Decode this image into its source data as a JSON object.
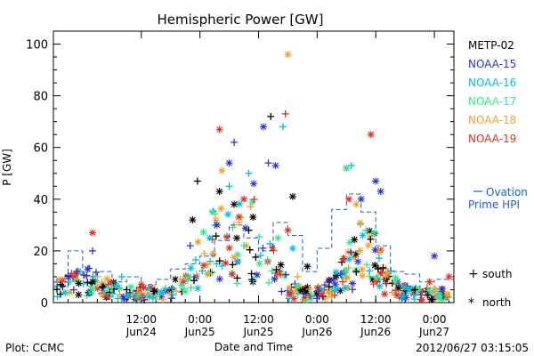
{
  "chart_data": {
    "type": "scatter",
    "title": "Hemispheric Power [GW]",
    "xlabel": "Date and Time",
    "ylabel": "P [GW]",
    "ylim": [
      0,
      105
    ],
    "yticks": [
      0,
      20,
      40,
      60,
      80,
      100
    ],
    "xlim": [
      "2012-06-23 18:00",
      "2012-06-27 04:00"
    ],
    "xticks": [
      {
        "time": "2012-06-24 12:00",
        "line1": "12:00",
        "line2": "Jun24"
      },
      {
        "time": "2012-06-25 00:00",
        "line1": "0:00",
        "line2": "Jun25"
      },
      {
        "time": "2012-06-25 12:00",
        "line1": "12:00",
        "line2": "Jun25"
      },
      {
        "time": "2012-06-26 00:00",
        "line1": "0:00",
        "line2": "Jun26"
      },
      {
        "time": "2012-06-26 12:00",
        "line1": "12:00",
        "line2": "Jun26"
      },
      {
        "time": "2012-06-27 00:00",
        "line1": "0:00",
        "line2": "Jun27"
      }
    ],
    "grid": false,
    "legend_position": "right",
    "series": [
      {
        "name": "METP-02",
        "color": "#000000",
        "points": [
          {
            "x": "2012-06-23 19:30",
            "y": 7,
            "m": "+"
          },
          {
            "x": "2012-06-24 02:00",
            "y": 8,
            "m": "*"
          },
          {
            "x": "2012-06-24 09:00",
            "y": 5,
            "m": "+"
          },
          {
            "x": "2012-06-24 19:00",
            "y": 9,
            "m": "*"
          },
          {
            "x": "2012-06-24 22:30",
            "y": 32,
            "m": "*"
          },
          {
            "x": "2012-06-24 23:30",
            "y": 47,
            "m": "+"
          },
          {
            "x": "2012-06-25 04:00",
            "y": 43,
            "m": "*"
          },
          {
            "x": "2012-06-25 07:00",
            "y": 38,
            "m": "*"
          },
          {
            "x": "2012-06-25 10:00",
            "y": 28,
            "m": "+"
          },
          {
            "x": "2012-06-25 14:30",
            "y": 72,
            "m": "+"
          },
          {
            "x": "2012-06-25 19:00",
            "y": 41,
            "m": "*"
          },
          {
            "x": "2012-06-25 22:00",
            "y": 14,
            "m": "*"
          },
          {
            "x": "2012-06-26 08:00",
            "y": 12,
            "m": "+"
          },
          {
            "x": "2012-06-26 14:00",
            "y": 9,
            "m": "*"
          },
          {
            "x": "2012-06-26 20:00",
            "y": 5,
            "m": "+"
          }
        ]
      },
      {
        "name": "NOAA-15",
        "color": "#2a34d0",
        "points": [
          {
            "x": "2012-06-23 21:00",
            "y": 10,
            "m": "*"
          },
          {
            "x": "2012-06-24 01:00",
            "y": 13,
            "m": "*"
          },
          {
            "x": "2012-06-24 02:00",
            "y": 20,
            "m": "+"
          },
          {
            "x": "2012-06-24 22:00",
            "y": 22,
            "m": "+"
          },
          {
            "x": "2012-06-25 03:30",
            "y": 30,
            "m": "*"
          },
          {
            "x": "2012-06-25 06:00",
            "y": 54,
            "m": "*"
          },
          {
            "x": "2012-06-25 07:00",
            "y": 62,
            "m": "+"
          },
          {
            "x": "2012-06-25 11:00",
            "y": 46,
            "m": "*"
          },
          {
            "x": "2012-06-25 13:00",
            "y": 68,
            "m": "*"
          },
          {
            "x": "2012-06-25 14:00",
            "y": 54,
            "m": "+"
          },
          {
            "x": "2012-06-25 15:30",
            "y": 53,
            "m": "*"
          },
          {
            "x": "2012-06-26 06:00",
            "y": 52,
            "m": "*"
          },
          {
            "x": "2012-06-26 09:00",
            "y": 40,
            "m": "*"
          },
          {
            "x": "2012-06-26 12:00",
            "y": 47,
            "m": "*"
          },
          {
            "x": "2012-06-26 13:00",
            "y": 43,
            "m": "*"
          },
          {
            "x": "2012-06-27 00:00",
            "y": 18,
            "m": "*"
          }
        ]
      },
      {
        "name": "NOAA-16",
        "color": "#00bfe0",
        "points": [
          {
            "x": "2012-06-24 08:00",
            "y": 10,
            "m": "+"
          },
          {
            "x": "2012-06-25 02:00",
            "y": 25,
            "m": "*"
          },
          {
            "x": "2012-06-25 06:00",
            "y": 45,
            "m": "+"
          },
          {
            "x": "2012-06-25 10:00",
            "y": 50,
            "m": "+"
          },
          {
            "x": "2012-06-25 17:00",
            "y": 68,
            "m": "+"
          },
          {
            "x": "2012-06-25 19:00",
            "y": 21,
            "m": "*"
          },
          {
            "x": "2012-06-26 07:00",
            "y": 53,
            "m": "+"
          },
          {
            "x": "2012-06-26 18:00",
            "y": 6,
            "m": "*"
          }
        ]
      },
      {
        "name": "NOAA-17",
        "color": "#30e890",
        "points": [
          {
            "x": "2012-06-24 06:00",
            "y": 6,
            "m": "+"
          },
          {
            "x": "2012-06-25 02:30",
            "y": 35,
            "m": "*"
          },
          {
            "x": "2012-06-25 09:00",
            "y": 22,
            "m": "+"
          },
          {
            "x": "2012-06-25 16:00",
            "y": 25,
            "m": "*"
          },
          {
            "x": "2012-06-26 06:00",
            "y": 52,
            "m": "*"
          },
          {
            "x": "2012-06-26 10:00",
            "y": 28,
            "m": "+"
          },
          {
            "x": "2012-06-26 16:00",
            "y": 8,
            "m": "*"
          }
        ]
      },
      {
        "name": "NOAA-18",
        "color": "#f0a030",
        "points": [
          {
            "x": "2012-06-24 04:00",
            "y": 3,
            "m": "*"
          },
          {
            "x": "2012-06-24 20:00",
            "y": 9,
            "m": "+"
          },
          {
            "x": "2012-06-25 04:30",
            "y": 51,
            "m": "*"
          },
          {
            "x": "2012-06-25 08:00",
            "y": 31,
            "m": "+"
          },
          {
            "x": "2012-06-25 18:00",
            "y": 96,
            "m": "*"
          },
          {
            "x": "2012-06-25 20:00",
            "y": 10,
            "m": "+"
          },
          {
            "x": "2012-06-26 08:00",
            "y": 38,
            "m": "*"
          },
          {
            "x": "2012-06-26 14:00",
            "y": 10,
            "m": "+"
          },
          {
            "x": "2012-06-27 02:30",
            "y": 3,
            "m": "*"
          }
        ]
      },
      {
        "name": "NOAA-19",
        "color": "#e03020",
        "points": [
          {
            "x": "2012-06-24 02:00",
            "y": 27,
            "m": "*"
          },
          {
            "x": "2012-06-24 12:00",
            "y": 7,
            "m": "*"
          },
          {
            "x": "2012-06-25 04:00",
            "y": 67,
            "m": "*"
          },
          {
            "x": "2012-06-25 09:00",
            "y": 40,
            "m": "*"
          },
          {
            "x": "2012-06-25 17:30",
            "y": 73,
            "m": "+"
          },
          {
            "x": "2012-06-25 18:00",
            "y": 28,
            "m": "*"
          },
          {
            "x": "2012-06-26 06:30",
            "y": 40,
            "m": "*"
          },
          {
            "x": "2012-06-26 11:00",
            "y": 65,
            "m": "*"
          },
          {
            "x": "2012-06-26 23:00",
            "y": 8,
            "m": "*"
          },
          {
            "x": "2012-06-27 03:00",
            "y": 10,
            "m": "*"
          }
        ]
      },
      {
        "name": "Ovation Prime HPI",
        "color": "#2060c8",
        "style": "dash-step",
        "points": [
          {
            "x": "2012-06-23 18:00",
            "y": 6
          },
          {
            "x": "2012-06-23 21:00",
            "y": 20
          },
          {
            "x": "2012-06-24 00:00",
            "y": 10
          },
          {
            "x": "2012-06-24 03:00",
            "y": 12
          },
          {
            "x": "2012-06-24 06:00",
            "y": 8
          },
          {
            "x": "2012-06-24 09:00",
            "y": 10
          },
          {
            "x": "2012-06-24 12:00",
            "y": 7
          },
          {
            "x": "2012-06-24 15:00",
            "y": 9
          },
          {
            "x": "2012-06-24 18:00",
            "y": 13
          },
          {
            "x": "2012-06-24 21:00",
            "y": 15
          },
          {
            "x": "2012-06-25 00:00",
            "y": 18
          },
          {
            "x": "2012-06-25 03:00",
            "y": 24
          },
          {
            "x": "2012-06-25 06:00",
            "y": 30
          },
          {
            "x": "2012-06-25 09:00",
            "y": 25
          },
          {
            "x": "2012-06-25 12:00",
            "y": 20
          },
          {
            "x": "2012-06-25 15:00",
            "y": 31
          },
          {
            "x": "2012-06-25 18:00",
            "y": 26
          },
          {
            "x": "2012-06-25 21:00",
            "y": 12
          },
          {
            "x": "2012-06-26 00:00",
            "y": 21
          },
          {
            "x": "2012-06-26 03:00",
            "y": 36
          },
          {
            "x": "2012-06-26 06:00",
            "y": 42
          },
          {
            "x": "2012-06-26 09:00",
            "y": 35
          },
          {
            "x": "2012-06-26 12:00",
            "y": 22
          },
          {
            "x": "2012-06-26 15:00",
            "y": 12
          },
          {
            "x": "2012-06-26 18:00",
            "y": 11
          },
          {
            "x": "2012-06-26 21:00",
            "y": 8
          },
          {
            "x": "2012-06-27 00:00",
            "y": 9
          },
          {
            "x": "2012-06-27 03:00",
            "y": 9
          }
        ]
      }
    ],
    "marker_key": [
      {
        "symbol": "+",
        "label": "south"
      },
      {
        "symbol": "*",
        "label": "north"
      }
    ],
    "legend": [
      {
        "label": "METP-02",
        "color": "#000000"
      },
      {
        "label": "NOAA-15",
        "color": "#2a34d0"
      },
      {
        "label": "NOAA-16",
        "color": "#00bfe0"
      },
      {
        "label": "NOAA-17",
        "color": "#30e890"
      },
      {
        "label": "NOAA-18",
        "color": "#f0a030"
      },
      {
        "label": "NOAA-19",
        "color": "#e03020"
      }
    ],
    "ovation_label": {
      "line1": "Ovation",
      "line2": "Prime HPI",
      "color": "#2060c8"
    }
  },
  "footer": {
    "plot_credit": "Plot: CCMC",
    "timestamp": "2012/06/27 03:15:05"
  },
  "background_noise_seed": 7
}
